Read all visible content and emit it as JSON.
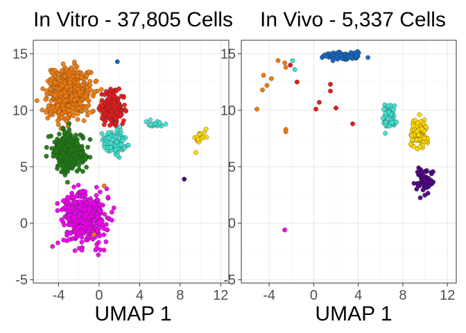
{
  "chart_data": [
    {
      "type": "scatter",
      "title": "In Vitro - 37,805 Cells",
      "xlabel": "UMAP 1",
      "ylabel": "",
      "xlim": [
        -6.5,
        12.8
      ],
      "ylim": [
        -5.3,
        16.2
      ],
      "xticks": [
        -4,
        0,
        4,
        8,
        12
      ],
      "yticks": [
        -5,
        0,
        5,
        10,
        15
      ],
      "grid": true,
      "clusters": [
        {
          "color": "#F07A0C",
          "center": [
            -3.0,
            11.5
          ],
          "spread": [
            1.9,
            2.0
          ],
          "count": 520
        },
        {
          "color": "#E41A1C",
          "center": [
            1.3,
            10.2
          ],
          "spread": [
            1.0,
            1.3
          ],
          "count": 220
        },
        {
          "color": "#1E7A12",
          "center": [
            -3.0,
            6.3
          ],
          "spread": [
            1.4,
            1.5
          ],
          "count": 360
        },
        {
          "color": "#EE00EE",
          "center": [
            -1.5,
            0.5
          ],
          "spread": [
            2.0,
            1.9
          ],
          "count": 440
        },
        {
          "color": "#40E0D0",
          "center": [
            1.5,
            7.2
          ],
          "spread": [
            1.0,
            0.8
          ],
          "count": 150
        },
        {
          "color": "#40E0D0",
          "center": [
            5.5,
            8.8
          ],
          "spread": [
            0.9,
            0.3
          ],
          "count": 22
        },
        {
          "color": "#FFD700",
          "center": [
            10.0,
            7.6
          ],
          "spread": [
            0.7,
            0.8
          ],
          "count": 16
        }
      ],
      "outliers": [
        {
          "x": 1.8,
          "y": 14.3,
          "color": "#1565C0"
        },
        {
          "x": 8.4,
          "y": 3.9,
          "color": "#4B0082"
        },
        {
          "x": 0.5,
          "y": 3.3,
          "color": "#F07A0C"
        },
        {
          "x": -0.5,
          "y": -1.0,
          "color": "#F07A0C"
        }
      ]
    },
    {
      "type": "scatter",
      "title": "In Vivo - 5,337 Cells",
      "xlabel": "UMAP 1",
      "ylabel": "",
      "xlim": [
        -6.5,
        12.8
      ],
      "ylim": [
        -5.3,
        16.2
      ],
      "xticks": [
        -4,
        0,
        4,
        8,
        12
      ],
      "yticks": [
        -5,
        0,
        5,
        10,
        15
      ],
      "grid": true,
      "clusters": [
        {
          "color": "#1565C0",
          "center": [
            2.6,
            14.8
          ],
          "spread": [
            1.5,
            0.3
          ],
          "count": 130
        },
        {
          "color": "#40E0D0",
          "center": [
            6.8,
            9.4
          ],
          "spread": [
            0.5,
            0.9
          ],
          "count": 90
        },
        {
          "color": "#FFD700",
          "center": [
            9.4,
            8.0
          ],
          "spread": [
            0.7,
            1.0
          ],
          "count": 120
        },
        {
          "color": "#4B0082",
          "center": [
            10.0,
            3.8
          ],
          "spread": [
            0.6,
            1.0
          ],
          "count": 60
        }
      ],
      "outliers": [
        {
          "x": -4.5,
          "y": 13.1,
          "color": "#F07A0C"
        },
        {
          "x": -3.8,
          "y": 12.8,
          "color": "#F07A0C"
        },
        {
          "x": -4.2,
          "y": 12.2,
          "color": "#F07A0C"
        },
        {
          "x": -4.6,
          "y": 11.8,
          "color": "#F07A0C"
        },
        {
          "x": -5.1,
          "y": 10.1,
          "color": "#F07A0C"
        },
        {
          "x": -3.2,
          "y": 14.4,
          "color": "#F07A0C"
        },
        {
          "x": -2.6,
          "y": 14.2,
          "color": "#F07A0C"
        },
        {
          "x": -2.5,
          "y": 13.8,
          "color": "#F07A0C"
        },
        {
          "x": -2.5,
          "y": 8.3,
          "color": "#F07A0C"
        },
        {
          "x": -2.5,
          "y": 8.1,
          "color": "#F07A0C"
        },
        {
          "x": -1.9,
          "y": 14.4,
          "color": "#40E0D0"
        },
        {
          "x": -1.7,
          "y": 13.6,
          "color": "#40E0D0"
        },
        {
          "x": -2.1,
          "y": 14.0,
          "color": "#E41A1C"
        },
        {
          "x": -1.5,
          "y": 12.5,
          "color": "#E41A1C"
        },
        {
          "x": 1.5,
          "y": 12.3,
          "color": "#E41A1C"
        },
        {
          "x": 1.5,
          "y": 11.7,
          "color": "#E41A1C"
        },
        {
          "x": 0.5,
          "y": 10.7,
          "color": "#E41A1C"
        },
        {
          "x": 0.2,
          "y": 10.1,
          "color": "#E41A1C"
        },
        {
          "x": 3.5,
          "y": 8.8,
          "color": "#E41A1C"
        },
        {
          "x": 2.0,
          "y": 10.2,
          "color": "#E41A1C"
        },
        {
          "x": -2.6,
          "y": -0.6,
          "color": "#EE00EE"
        }
      ]
    }
  ]
}
